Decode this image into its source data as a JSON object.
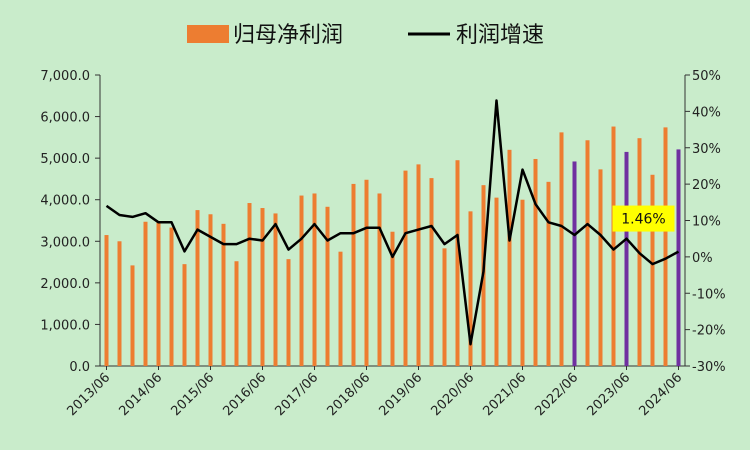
{
  "chart_data": {
    "type": "bar+line",
    "legend": {
      "placement": "top-center",
      "items": [
        {
          "label": "归母净利润",
          "kind": "bar"
        },
        {
          "label": "利润增速",
          "kind": "line"
        }
      ]
    },
    "x_tick_labels": [
      "2013/06",
      "2014/06",
      "2015/06",
      "2016/06",
      "2017/06",
      "2018/06",
      "2019/06",
      "2020/06",
      "2021/06",
      "2022/06",
      "2023/06",
      "2024/06"
    ],
    "y_left": {
      "min": 0,
      "max": 7000,
      "step": 1000,
      "tick_labels": [
        "0.0",
        "1,000.0",
        "2,000.0",
        "3,000.0",
        "4,000.0",
        "5,000.0",
        "6,000.0",
        "7,000.0"
      ]
    },
    "y_right": {
      "min": -30,
      "max": 50,
      "step": 10,
      "tick_labels": [
        "-30%",
        "-20%",
        "-10%",
        "0%",
        "10%",
        "20%",
        "30%",
        "40%",
        "50%"
      ]
    },
    "grid": false,
    "colors": {
      "bar": "#ed7d31",
      "bar_highlight": "#7030a0",
      "line": "#000000",
      "annotation_bg": "#ffff00"
    },
    "highlight_indices": [
      36,
      40,
      44
    ],
    "series": [
      {
        "name": "归母净利润",
        "kind": "bar",
        "axis": "left",
        "values": [
          3150,
          3000,
          2420,
          3470,
          3450,
          3330,
          2450,
          3750,
          3650,
          3420,
          2520,
          3920,
          3800,
          3670,
          2570,
          4100,
          4150,
          3830,
          2750,
          4380,
          4480,
          4150,
          3230,
          4700,
          4850,
          4520,
          2830,
          4950,
          3720,
          4350,
          4050,
          5200,
          4000,
          4980,
          4430,
          5620,
          4920,
          5430,
          4730,
          5760,
          5150,
          5480,
          4600,
          5740,
          5210
        ]
      },
      {
        "name": "利润增速",
        "kind": "line",
        "axis": "right",
        "values": [
          14,
          11.5,
          11,
          12,
          9.5,
          9.5,
          1.5,
          7.5,
          5.5,
          3.5,
          3.5,
          5,
          4.5,
          9,
          2,
          5,
          9,
          4.5,
          6.5,
          6.5,
          8,
          8,
          0,
          6.5,
          7.5,
          8.5,
          3.5,
          6,
          -24,
          -4,
          43,
          4.5,
          24,
          14.5,
          9.5,
          8.5,
          6,
          9,
          6,
          2,
          5,
          1,
          -2,
          -0.5,
          1.46
        ]
      }
    ],
    "annotation": {
      "text": "1.46%",
      "point_index": 44
    }
  }
}
